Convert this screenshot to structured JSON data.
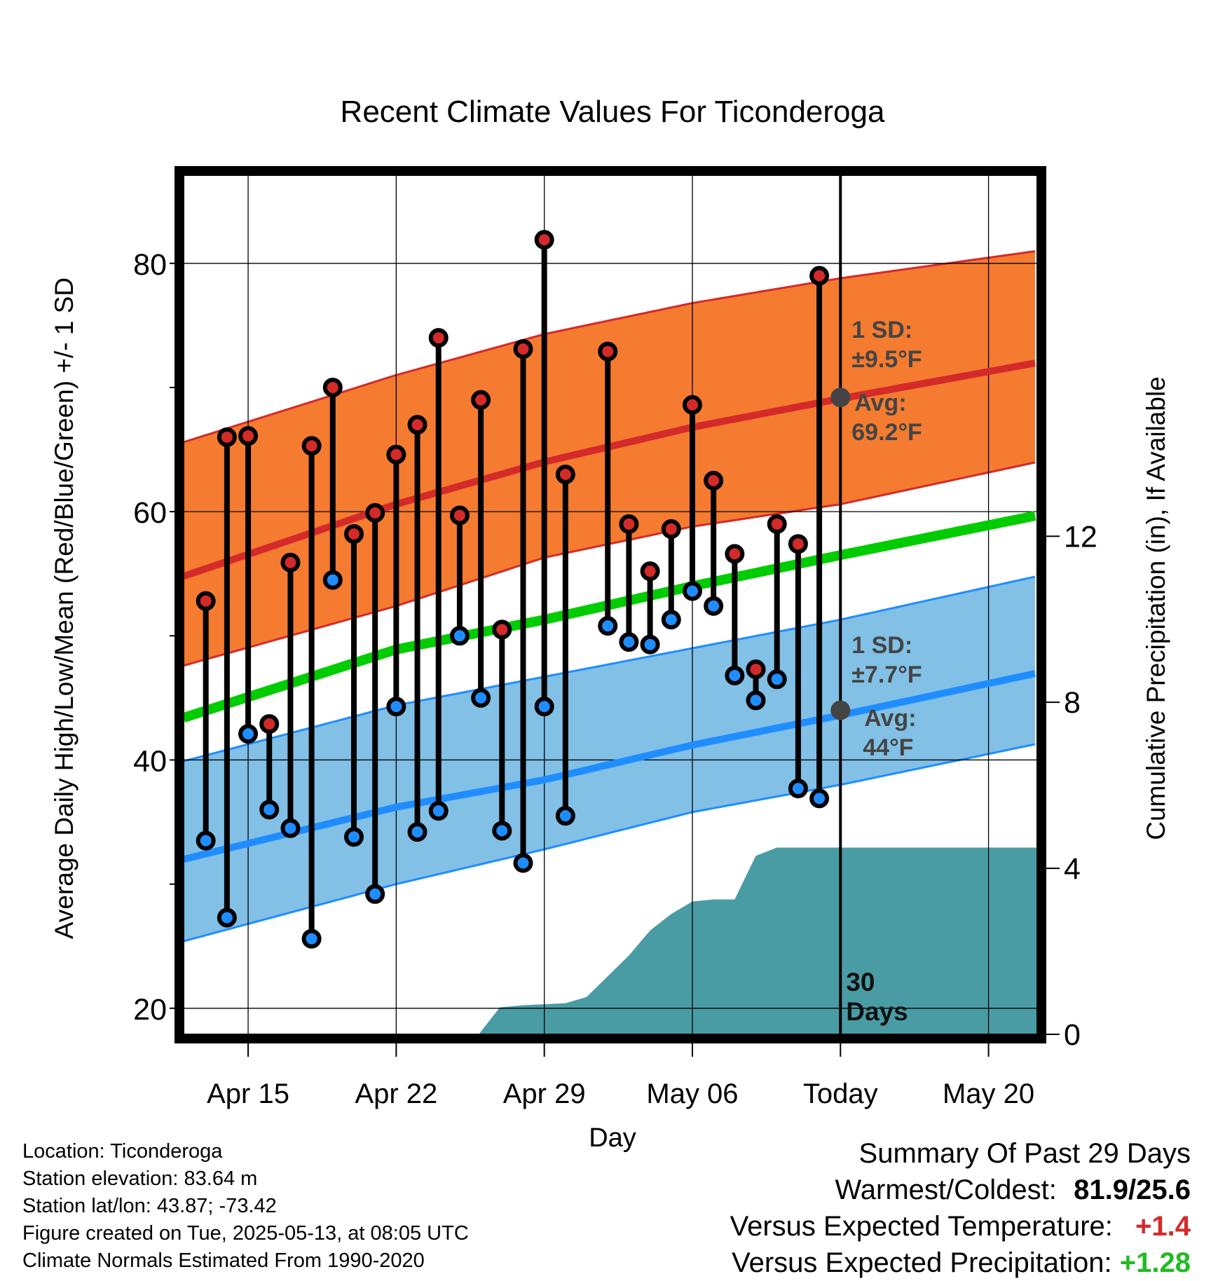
{
  "colors": {
    "high": "#d42a2a",
    "low": "#1f8dff",
    "mean": "#00cc00",
    "high_band": "#f47b30",
    "low_band": "#82c0e6",
    "precip": "#4a9ca4",
    "marker_today": "#444444"
  },
  "chart_data": {
    "type": "line",
    "title": "Recent Climate Values For Ticonderoga",
    "xlabel": "Day",
    "ylabel": "Average Daily High/Low/Mean (Red/Blue/Green) +/- 1 SD",
    "y2label": "Cumulative Precipitation (in), If Available",
    "ylim": [
      17.9,
      87.1
    ],
    "y2lim": [
      0,
      20.7
    ],
    "yticks": [
      20,
      40,
      60,
      80
    ],
    "y2ticks": [
      0,
      4,
      8,
      12
    ],
    "xlim": [
      -3.05,
      37.3
    ],
    "xticks": [
      {
        "x": 0,
        "label": "Apr 15"
      },
      {
        "x": 7,
        "label": "Apr 22"
      },
      {
        "x": 14,
        "label": "Apr 29"
      },
      {
        "x": 21,
        "label": "May 06"
      },
      {
        "x": 28,
        "label": "Today"
      },
      {
        "x": 35,
        "label": "May 20"
      }
    ],
    "grid": true,
    "today_x": 28,
    "today_label": [
      "30",
      "Days"
    ],
    "normals": {
      "x": [
        -3.05,
        7,
        14,
        21,
        28,
        37.3
      ],
      "high": [
        54.8,
        60.6,
        64.0,
        66.8,
        69.1,
        72.0
      ],
      "high_sd_top": [
        65.6,
        71.0,
        74.3,
        76.8,
        78.8,
        81.0
      ],
      "high_sd_bottom": [
        47.6,
        52.4,
        56.3,
        58.8,
        60.6,
        64.0
      ],
      "mean": [
        43.4,
        48.9,
        51.3,
        54.0,
        56.5,
        59.7
      ],
      "low": [
        32.0,
        36.2,
        38.4,
        41.2,
        43.6,
        47.0
      ],
      "low_sd_top": [
        39.9,
        44.4,
        46.7,
        49.0,
        51.3,
        54.8
      ],
      "low_sd_bottom": [
        25.4,
        30.0,
        32.8,
        35.8,
        38.0,
        41.3
      ]
    },
    "series": [
      {
        "name": "High",
        "x": [
          -2,
          -1,
          0,
          1,
          2,
          3,
          4,
          5,
          6,
          7,
          8,
          9,
          10,
          11,
          12,
          13,
          14,
          15,
          17,
          18,
          19,
          20,
          21,
          22,
          23,
          24,
          25,
          26,
          27
        ],
        "values": [
          52.8,
          66.0,
          66.1,
          42.9,
          55.9,
          65.3,
          70.0,
          58.2,
          59.9,
          64.6,
          67.0,
          74.0,
          59.7,
          69.0,
          50.5,
          73.1,
          81.9,
          63.0,
          72.9,
          59.0,
          55.2,
          58.6,
          68.6,
          62.5,
          56.6,
          47.3,
          59.0,
          57.4,
          79.0
        ]
      },
      {
        "name": "Low",
        "x": [
          -2,
          -1,
          0,
          1,
          2,
          3,
          4,
          5,
          6,
          7,
          8,
          9,
          10,
          11,
          12,
          13,
          14,
          15,
          17,
          18,
          19,
          20,
          21,
          22,
          23,
          24,
          25,
          26,
          27
        ],
        "values": [
          33.5,
          27.3,
          42.1,
          36.0,
          34.5,
          25.6,
          54.5,
          33.8,
          29.2,
          44.3,
          34.2,
          35.9,
          50.0,
          45.0,
          34.3,
          31.7,
          44.3,
          35.5,
          50.8,
          49.5,
          49.3,
          51.3,
          53.6,
          52.4,
          46.8,
          44.8,
          46.5,
          37.7,
          36.9
        ]
      },
      {
        "name": "Precipitation",
        "x": [
          10.9,
          11.9,
          13,
          15,
          16,
          17,
          18,
          19,
          20,
          21,
          22,
          23,
          24,
          25,
          37.3
        ],
        "values": [
          0,
          0.65,
          0.7,
          0.75,
          0.9,
          1.4,
          1.9,
          2.5,
          2.9,
          3.2,
          3.25,
          3.25,
          4.3,
          4.5,
          4.5
        ]
      }
    ],
    "annotations": {
      "high_sd": "1 SD:",
      "high_sd_value": "±9.5°F",
      "high_avg": "Avg:",
      "high_avg_value": "69.2°F",
      "high_avg_y": 69.2,
      "low_sd": "1 SD:",
      "low_sd_value": "±7.7°F",
      "low_avg": "Avg:",
      "low_avg_value": "44°F",
      "low_avg_y": 44
    }
  },
  "info": {
    "location": "Location: Ticonderoga",
    "elevation": "Station elevation: 83.64 m",
    "latlon": "Station lat/lon: 43.87; -73.42",
    "created": "Figure created on Tue, 2025-05-13, at 08:05 UTC",
    "normals": "Climate Normals Estimated From 1990-2020"
  },
  "summary": {
    "title": "Summary Of Past 29 Days",
    "warm_label": "Warmest/Coldest:",
    "warm_value": "81.9/25.6",
    "temp_label": "Versus Expected Temperature:",
    "temp_value": "+1.4",
    "precip_label": "Versus Expected Precipitation:",
    "precip_value": "+1.28"
  }
}
